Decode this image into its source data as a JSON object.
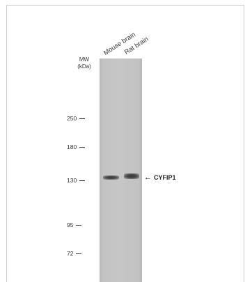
{
  "lanes": [
    "Mouse brain",
    "Rat brain"
  ],
  "mw_label": {
    "line1": "MW",
    "line2": "(kDa)"
  },
  "markers": [
    "250",
    "180",
    "130",
    "95",
    "72"
  ],
  "target": {
    "arrow": "←",
    "label": "CYFIP1"
  }
}
